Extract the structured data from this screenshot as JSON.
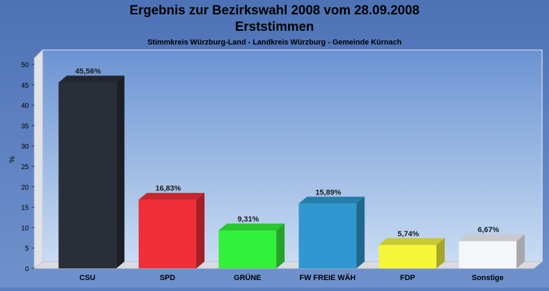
{
  "chart_data": {
    "type": "bar",
    "title": "Ergebnis zur Bezirkswahl 2008 vom 28.09.2008",
    "title2": "Erststimmen",
    "subtitle": "Stimmkreis Würzburg-Land - Landkreis Würzburg - Gemeinde Kürnach",
    "ylabel": "%",
    "xlabel": "",
    "ylim": [
      0,
      50
    ],
    "yticks": [
      0,
      5,
      10,
      15,
      20,
      25,
      30,
      35,
      40,
      45,
      50
    ],
    "grid": false,
    "categories": [
      "CSU",
      "SPD",
      "GRÜNE",
      "FW FREIE WÄH",
      "FDP",
      "Sonstige"
    ],
    "values": [
      45.56,
      16.83,
      9.31,
      15.89,
      5.74,
      6.67
    ],
    "value_labels": [
      "45,56%",
      "16,83%",
      "9,31%",
      "15,89%",
      "5,74%",
      "6,67%"
    ],
    "colors": [
      "#2a2e38",
      "#f03038",
      "#33f03a",
      "#2f98d0",
      "#f5f53a",
      "#f4f6fa"
    ]
  }
}
